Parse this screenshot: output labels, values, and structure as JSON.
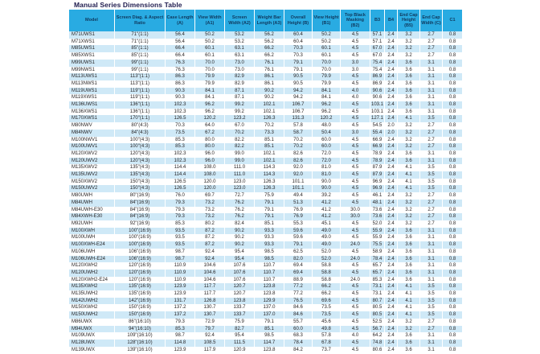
{
  "title": "Manual Series Dimensions Table",
  "colors": {
    "header_bg": "#29abe2",
    "header_text": "#10395e",
    "row_alt_bg": "#cfe9f7",
    "row_bg": "#ffffff",
    "cell_text": "#231f20",
    "title_color": "#1e1b4e"
  },
  "table": {
    "columns": [
      "Model",
      "Screen Diag. & Aspect Ratio",
      "Case Length (A)",
      "View Width (A1)",
      "Screen Width (A2)",
      "Weight Bar Length (A3)",
      "Overall Height (B)",
      "View Height (B1)",
      "Top Black Masking (B2)",
      "B3",
      "B4",
      "End Cap Height (B5)",
      "End Cap Width (C)",
      "C1"
    ],
    "rows": [
      [
        "M71UWS1",
        "71\"(1:1)",
        "56.4",
        "50.2",
        "53.2",
        "56.2",
        "60.4",
        "50.2",
        "4.5",
        "57.1",
        "2.4",
        "3.2",
        "2.7",
        "0.8"
      ],
      [
        "M71XWS1",
        "71\"(1:1)",
        "56.4",
        "50.2",
        "53.2",
        "56.2",
        "60.4",
        "50.2",
        "4.5",
        "57.1",
        "2.4",
        "3.2",
        "2.7",
        "0.8"
      ],
      [
        "M85UWS1",
        "85\"(1:1)",
        "66.4",
        "60.1",
        "63.1",
        "66.2",
        "70.3",
        "60.1",
        "4.5",
        "67.0",
        "2.4",
        "3.2",
        "2.7",
        "0.8"
      ],
      [
        "M85XWS1",
        "85\"(1:1)",
        "66.4",
        "60.1",
        "63.1",
        "66.2",
        "70.3",
        "60.1",
        "4.5",
        "67.0",
        "2.4",
        "3.2",
        "2.7",
        "0.8"
      ],
      [
        "M99UWS1",
        "99\"(1:1)",
        "76.3",
        "70.0",
        "73.0",
        "76.1",
        "79.1",
        "70.0",
        "3.0",
        "75.4",
        "2.4",
        "3.6",
        "3.1",
        "0.8"
      ],
      [
        "M99NWS1",
        "99\"(1:1)",
        "76.3",
        "70.0",
        "73.0",
        "76.1",
        "79.1",
        "70.0",
        "3.0",
        "75.4",
        "2.4",
        "3.6",
        "3.1",
        "0.8"
      ],
      [
        "M113UWS1",
        "113\"(1:1)",
        "86.3",
        "79.9",
        "82.9",
        "86.1",
        "90.5",
        "79.9",
        "4.5",
        "86.9",
        "2.4",
        "3.6",
        "3.1",
        "0.8"
      ],
      [
        "M113NWS1",
        "113\"(1:1)",
        "86.3",
        "79.9",
        "82.9",
        "86.1",
        "90.5",
        "79.9",
        "4.5",
        "86.9",
        "2.4",
        "3.6",
        "3.1",
        "0.8"
      ],
      [
        "M119UWS1",
        "119\"(1:1)",
        "90.3",
        "84.1",
        "87.1",
        "90.2",
        "94.2",
        "84.1",
        "4.0",
        "90.6",
        "2.4",
        "3.6",
        "3.1",
        "0.8"
      ],
      [
        "M119XWS1",
        "119\"(1:1)",
        "90.3",
        "84.1",
        "87.1",
        "90.2",
        "94.2",
        "84.1",
        "4.0",
        "90.6",
        "2.4",
        "3.6",
        "3.1",
        "0.8"
      ],
      [
        "M136UWS1",
        "136\"(1:1)",
        "102.3",
        "96.2",
        "99.2",
        "102.1",
        "106.7",
        "96.2",
        "4.5",
        "103.1",
        "2.4",
        "3.6",
        "3.1",
        "0.8"
      ],
      [
        "M136XWS1",
        "136\"(1:1)",
        "102.3",
        "96.2",
        "99.2",
        "102.1",
        "106.7",
        "96.2",
        "4.5",
        "103.1",
        "2.4",
        "3.6",
        "3.1",
        "0.8"
      ],
      [
        "M170XWS1",
        "170\"(1:1)",
        "126.5",
        "120.2",
        "123.2",
        "126.3",
        "131.3",
        "120.2",
        "4.5",
        "127.1",
        "2.4",
        "4.1",
        "3.5",
        "0.8"
      ],
      [
        "M80NWV",
        "80\"(4:3)",
        "70.3",
        "64.0",
        "67.0",
        "70.2",
        "57.8",
        "48.0",
        "4.5",
        "54.5",
        "2.0",
        "3.2",
        "2.7",
        "0.8"
      ],
      [
        "M84NWV",
        "84\"(4:3)",
        "73.5",
        "67.2",
        "70.2",
        "73.3",
        "58.7",
        "50.4",
        "3.0",
        "55.4",
        "2.0",
        "3.2",
        "2.7",
        "0.8"
      ],
      [
        "M100NWV1",
        "100\"(4:3)",
        "85.3",
        "80.0",
        "82.2",
        "85.1",
        "70.2",
        "60.0",
        "4.5",
        "66.9",
        "2.4",
        "3.2",
        "2.7",
        "0.8"
      ],
      [
        "M100UWV1",
        "100\"(4:3)",
        "85.3",
        "80.0",
        "82.2",
        "85.1",
        "70.2",
        "60.0",
        "4.5",
        "66.9",
        "2.4",
        "3.2",
        "2.7",
        "0.8"
      ],
      [
        "M120XWV2",
        "120\"(4:3)",
        "102.3",
        "96.0",
        "99.0",
        "102.1",
        "82.6",
        "72.0",
        "4.5",
        "78.9",
        "2.4",
        "3.6",
        "3.1",
        "0.8"
      ],
      [
        "M120UWV2",
        "120\"(4:3)",
        "102.3",
        "96.0",
        "99.0",
        "102.1",
        "82.6",
        "72.0",
        "4.5",
        "78.9",
        "2.4",
        "3.6",
        "3.1",
        "0.8"
      ],
      [
        "M135XWV2",
        "135\"(4:3)",
        "114.4",
        "108.0",
        "111.0",
        "114.3",
        "92.0",
        "81.0",
        "4.5",
        "87.9",
        "2.4",
        "4.1",
        "3.5",
        "0.8"
      ],
      [
        "M135UWV2",
        "135\"(4:3)",
        "114.4",
        "108.0",
        "111.0",
        "114.3",
        "92.0",
        "81.0",
        "4.5",
        "87.9",
        "2.4",
        "4.1",
        "3.5",
        "0.8"
      ],
      [
        "M150XWV2",
        "150\"(4:3)",
        "126.5",
        "120.0",
        "123.0",
        "126.3",
        "101.1",
        "90.0",
        "4.5",
        "96.9",
        "2.4",
        "4.1",
        "3.5",
        "0.8"
      ],
      [
        "M150UWV2",
        "150\"(4:3)",
        "126.5",
        "120.0",
        "123.0",
        "126.3",
        "101.1",
        "90.0",
        "4.5",
        "96.9",
        "2.4",
        "4.1",
        "3.5",
        "0.8"
      ],
      [
        "M80UWH",
        "80\"(16:9)",
        "76.0",
        "69.7",
        "72.7",
        "75.9",
        "49.4",
        "39.2",
        "4.5",
        "46.1",
        "2.4",
        "3.2",
        "2.7",
        "0.8"
      ],
      [
        "M84UWH",
        "84\"(16:9)",
        "79.3",
        "73.2",
        "76.2",
        "79.1",
        "51.3",
        "41.2",
        "4.5",
        "48.1",
        "2.4",
        "3.2",
        "2.7",
        "0.8"
      ],
      [
        "M84UWH-E30",
        "84\"(16:9)",
        "79.3",
        "73.2",
        "76.2",
        "79.1",
        "76.9",
        "41.2",
        "30.0",
        "73.6",
        "2.4",
        "3.2",
        "2.7",
        "0.8"
      ],
      [
        "M84XWH-E30",
        "84\"(16:9)",
        "79.3",
        "73.2",
        "76.2",
        "79.1",
        "76.9",
        "41.2",
        "30.0",
        "73.6",
        "2.4",
        "3.2",
        "2.7",
        "0.8"
      ],
      [
        "M92UWH",
        "92\"(16:9)",
        "85.3",
        "80.2",
        "82.4",
        "85.1",
        "55.3",
        "45.1",
        "4.5",
        "52.0",
        "2.4",
        "3.2",
        "2.7",
        "0.8"
      ],
      [
        "M100XWH",
        "100\"(16:9)",
        "93.5",
        "87.2",
        "90.2",
        "93.3",
        "59.6",
        "49.0",
        "4.5",
        "55.9",
        "2.4",
        "3.6",
        "3.1",
        "0.8"
      ],
      [
        "M100UWH",
        "100\"(16:9)",
        "93.5",
        "87.2",
        "90.2",
        "93.3",
        "59.6",
        "49.0",
        "4.5",
        "55.9",
        "2.4",
        "3.6",
        "3.1",
        "0.8"
      ],
      [
        "M100XWH-E24",
        "100\"(16:9)",
        "93.5",
        "87.2",
        "90.2",
        "93.3",
        "79.1",
        "49.0",
        "24.0",
        "75.5",
        "2.4",
        "3.6",
        "3.1",
        "0.8"
      ],
      [
        "M106UWH",
        "106\"(16:9)",
        "98.7",
        "92.4",
        "95.4",
        "98.5",
        "62.5",
        "52.0",
        "4.5",
        "58.9",
        "2.4",
        "3.6",
        "3.1",
        "0.8"
      ],
      [
        "M106UWH-E24",
        "106\"(16:9)",
        "98.7",
        "92.4",
        "95.4",
        "98.5",
        "82.0",
        "52.0",
        "24.0",
        "78.4",
        "2.4",
        "3.6",
        "3.1",
        "0.8"
      ],
      [
        "M120XWH2",
        "120\"(16:9)",
        "110.9",
        "104.6",
        "107.6",
        "110.7",
        "69.4",
        "58.8",
        "4.5",
        "65.7",
        "2.4",
        "3.6",
        "3.1",
        "0.8"
      ],
      [
        "M120UWH2",
        "120\"(16:9)",
        "110.9",
        "104.6",
        "107.6",
        "110.7",
        "69.4",
        "58.8",
        "4.5",
        "65.7",
        "2.4",
        "3.6",
        "3.1",
        "0.8"
      ],
      [
        "M120XWH2-E24",
        "120\"(16:9)",
        "110.9",
        "104.6",
        "107.6",
        "110.7",
        "88.9",
        "58.8",
        "24.0",
        "85.3",
        "2.4",
        "3.6",
        "3.1",
        "0.8"
      ],
      [
        "M135XWH2",
        "135\"(16:9)",
        "123.9",
        "117.7",
        "120.7",
        "123.8",
        "77.2",
        "66.2",
        "4.5",
        "73.1",
        "2.4",
        "4.1",
        "3.5",
        "0.8"
      ],
      [
        "M135UWH2",
        "135\"(16:9)",
        "123.9",
        "117.7",
        "120.7",
        "123.8",
        "77.2",
        "66.2",
        "4.5",
        "73.1",
        "2.4",
        "4.1",
        "3.5",
        "0.8"
      ],
      [
        "M142UWH2",
        "142\"(16:9)",
        "131.7",
        "126.8",
        "123.8",
        "129.9",
        "76.5",
        "69.6",
        "4.5",
        "80.7",
        "2.4",
        "4.1",
        "3.5",
        "0.8"
      ],
      [
        "M150XWH2",
        "150\"(16:9)",
        "137.2",
        "130.7",
        "133.7",
        "137.0",
        "84.6",
        "73.5",
        "4.5",
        "80.5",
        "2.4",
        "4.1",
        "3.5",
        "0.8"
      ],
      [
        "M150UWH2",
        "150\"(16:9)",
        "137.2",
        "130.7",
        "133.7",
        "137.0",
        "84.6",
        "73.5",
        "4.5",
        "80.5",
        "2.4",
        "4.1",
        "3.5",
        "0.8"
      ],
      [
        "M86UWX",
        "86\"(16:10)",
        "79.3",
        "72.9",
        "75.9",
        "79.1",
        "55.7",
        "45.6",
        "4.5",
        "52.5",
        "2.4",
        "3.2",
        "2.7",
        "0.8"
      ],
      [
        "M94UWX",
        "94\"(16:10)",
        "85.3",
        "79.7",
        "82.7",
        "85.1",
        "60.0",
        "49.8",
        "4.5",
        "56.7",
        "2.4",
        "3.2",
        "2.7",
        "0.8"
      ],
      [
        "M109UWX",
        "109\"(16:10)",
        "98.7",
        "92.4",
        "95.4",
        "98.5",
        "68.3",
        "57.8",
        "4.0",
        "64.2",
        "2.4",
        "3.6",
        "3.1",
        "0.8"
      ],
      [
        "M128UWX",
        "128\"(16:10)",
        "114.8",
        "108.5",
        "111.5",
        "114.7",
        "78.4",
        "67.8",
        "4.5",
        "74.8",
        "2.4",
        "3.6",
        "3.1",
        "0.8"
      ],
      [
        "M139UWX",
        "139\"(16:10)",
        "123.9",
        "117.9",
        "120.9",
        "123.8",
        "84.2",
        "73.7",
        "4.5",
        "80.6",
        "2.4",
        "3.6",
        "3.1",
        "0.8"
      ]
    ]
  }
}
